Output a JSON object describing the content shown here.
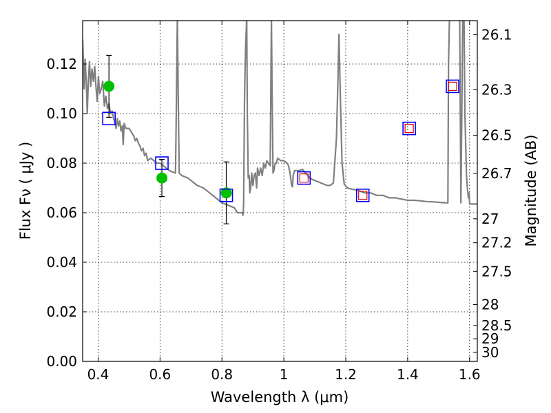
{
  "chart_data": {
    "type": "line",
    "xlabel": "Wavelength  λ (μm)",
    "ylabel": "Flux  Fν  ( μJy )",
    "y2label": "Magnitude (AB)",
    "xlim": [
      0.35,
      1.625
    ],
    "ylim": [
      0.0,
      0.1375
    ],
    "x_ticks": [
      0.4,
      0.6,
      0.8,
      1.0,
      1.2,
      1.4,
      1.6
    ],
    "x_tick_labels": [
      "0.4",
      "0.6",
      "0.8",
      "1",
      "1.2",
      "1.4",
      "1.6"
    ],
    "y_ticks": [
      0.0,
      0.02,
      0.04,
      0.06,
      0.08,
      0.1,
      0.12
    ],
    "y_tick_labels": [
      "0.00",
      "0.02",
      "0.04",
      "0.06",
      "0.08",
      "0.10",
      "0.12"
    ],
    "mag_ticks": [
      {
        "mag": 26.1,
        "label": "26.1"
      },
      {
        "mag": 26.3,
        "label": "26.3"
      },
      {
        "mag": 26.5,
        "label": "26.5"
      },
      {
        "mag": 26.7,
        "label": "26.7"
      },
      {
        "mag": 27.0,
        "label": "27"
      },
      {
        "mag": 27.2,
        "label": "27.2"
      },
      {
        "mag": 27.5,
        "label": "27.5"
      },
      {
        "mag": 28.0,
        "label": "28"
      },
      {
        "mag": 28.5,
        "label": "28.5"
      },
      {
        "mag": 29.0,
        "label": "29"
      },
      {
        "mag": 30.0,
        "label": "30"
      }
    ],
    "grid": true,
    "model_spectrum": {
      "color": "#808080",
      "points": [
        [
          0.35,
          0.13
        ],
        [
          0.355,
          0.11
        ],
        [
          0.358,
          0.122
        ],
        [
          0.362,
          0.112
        ],
        [
          0.365,
          0.1
        ],
        [
          0.368,
          0.112
        ],
        [
          0.372,
          0.121
        ],
        [
          0.376,
          0.111
        ],
        [
          0.38,
          0.118
        ],
        [
          0.385,
          0.113
        ],
        [
          0.389,
          0.119
        ],
        [
          0.393,
          0.111
        ],
        [
          0.397,
          0.105
        ],
        [
          0.401,
          0.115
        ],
        [
          0.405,
          0.108
        ],
        [
          0.41,
          0.11
        ],
        [
          0.415,
          0.113
        ],
        [
          0.42,
          0.103
        ],
        [
          0.425,
          0.107
        ],
        [
          0.43,
          0.102
        ],
        [
          0.435,
          0.104
        ],
        [
          0.44,
          0.1
        ],
        [
          0.445,
          0.101
        ],
        [
          0.45,
          0.098
        ],
        [
          0.455,
          0.096
        ],
        [
          0.458,
          0.094
        ],
        [
          0.462,
          0.098
        ],
        [
          0.466,
          0.095
        ],
        [
          0.47,
          0.097
        ],
        [
          0.474,
          0.093
        ],
        [
          0.478,
          0.095
        ],
        [
          0.481,
          0.0875
        ],
        [
          0.484,
          0.096
        ],
        [
          0.49,
          0.094
        ],
        [
          0.5,
          0.094
        ],
        [
          0.51,
          0.092
        ],
        [
          0.515,
          0.091
        ],
        [
          0.52,
          0.089
        ],
        [
          0.525,
          0.09
        ],
        [
          0.53,
          0.088
        ],
        [
          0.535,
          0.087
        ],
        [
          0.54,
          0.085
        ],
        [
          0.545,
          0.086
        ],
        [
          0.55,
          0.083
        ],
        [
          0.555,
          0.084
        ],
        [
          0.56,
          0.081
        ],
        [
          0.57,
          0.082
        ],
        [
          0.58,
          0.081
        ],
        [
          0.59,
          0.08
        ],
        [
          0.6,
          0.08
        ],
        [
          0.61,
          0.079
        ],
        [
          0.62,
          0.078
        ],
        [
          0.63,
          0.077
        ],
        [
          0.64,
          0.0765
        ],
        [
          0.65,
          0.076
        ],
        [
          0.652,
          0.095
        ],
        [
          0.656,
          0.139
        ],
        [
          0.66,
          0.095
        ],
        [
          0.662,
          0.076
        ],
        [
          0.67,
          0.075
        ],
        [
          0.68,
          0.0745
        ],
        [
          0.69,
          0.074
        ],
        [
          0.7,
          0.073
        ],
        [
          0.72,
          0.071
        ],
        [
          0.74,
          0.07
        ],
        [
          0.76,
          0.068
        ],
        [
          0.78,
          0.066
        ],
        [
          0.8,
          0.064
        ],
        [
          0.82,
          0.063
        ],
        [
          0.84,
          0.062
        ],
        [
          0.85,
          0.06
        ],
        [
          0.86,
          0.06
        ],
        [
          0.865,
          0.06
        ],
        [
          0.868,
          0.059
        ],
        [
          0.87,
          0.063
        ],
        [
          0.873,
          0.105
        ],
        [
          0.876,
          0.125
        ],
        [
          0.88,
          0.139
        ],
        [
          0.882,
          0.1
        ],
        [
          0.885,
          0.074
        ],
        [
          0.888,
          0.075
        ],
        [
          0.89,
          0.068
        ],
        [
          0.893,
          0.07
        ],
        [
          0.896,
          0.076
        ],
        [
          0.9,
          0.071
        ],
        [
          0.904,
          0.075
        ],
        [
          0.908,
          0.076
        ],
        [
          0.912,
          0.07
        ],
        [
          0.915,
          0.078
        ],
        [
          0.92,
          0.075
        ],
        [
          0.925,
          0.078
        ],
        [
          0.93,
          0.075
        ],
        [
          0.935,
          0.08
        ],
        [
          0.94,
          0.078
        ],
        [
          0.945,
          0.081
        ],
        [
          0.95,
          0.08
        ],
        [
          0.956,
          0.079
        ],
        [
          0.958,
          0.11
        ],
        [
          0.96,
          0.139
        ],
        [
          0.962,
          0.11
        ],
        [
          0.965,
          0.076
        ],
        [
          0.968,
          0.077
        ],
        [
          0.972,
          0.08
        ],
        [
          0.976,
          0.08
        ],
        [
          0.98,
          0.082
        ],
        [
          0.99,
          0.081
        ],
        [
          1.0,
          0.081
        ],
        [
          1.01,
          0.08
        ],
        [
          1.015,
          0.079
        ],
        [
          1.02,
          0.076
        ],
        [
          1.025,
          0.071
        ],
        [
          1.028,
          0.0705
        ],
        [
          1.03,
          0.075
        ],
        [
          1.035,
          0.077
        ],
        [
          1.04,
          0.077
        ],
        [
          1.05,
          0.077
        ],
        [
          1.06,
          0.0775
        ],
        [
          1.07,
          0.076
        ],
        [
          1.08,
          0.0745
        ],
        [
          1.09,
          0.0735
        ],
        [
          1.1,
          0.073
        ],
        [
          1.11,
          0.0725
        ],
        [
          1.12,
          0.072
        ],
        [
          1.13,
          0.0715
        ],
        [
          1.14,
          0.071
        ],
        [
          1.15,
          0.071
        ],
        [
          1.16,
          0.072
        ],
        [
          1.17,
          0.09
        ],
        [
          1.175,
          0.115
        ],
        [
          1.178,
          0.132
        ],
        [
          1.182,
          0.11
        ],
        [
          1.188,
          0.08
        ],
        [
          1.195,
          0.0715
        ],
        [
          1.205,
          0.07
        ],
        [
          1.22,
          0.0695
        ],
        [
          1.24,
          0.069
        ],
        [
          1.26,
          0.068
        ],
        [
          1.28,
          0.068
        ],
        [
          1.3,
          0.067
        ],
        [
          1.32,
          0.067
        ],
        [
          1.34,
          0.066
        ],
        [
          1.36,
          0.066
        ],
        [
          1.38,
          0.0655
        ],
        [
          1.4,
          0.065
        ],
        [
          1.42,
          0.065
        ],
        [
          1.44,
          0.0648
        ],
        [
          1.46,
          0.0645
        ],
        [
          1.48,
          0.0644
        ],
        [
          1.5,
          0.0642
        ],
        [
          1.52,
          0.064
        ],
        [
          1.53,
          0.064
        ],
        [
          1.532,
          0.12
        ],
        [
          1.535,
          0.139
        ],
        [
          1.55,
          0.139
        ],
        [
          1.568,
          0.139
        ],
        [
          1.57,
          0.1
        ],
        [
          1.572,
          0.064
        ],
        [
          1.575,
          0.1
        ],
        [
          1.578,
          0.139
        ],
        [
          1.582,
          0.139
        ],
        [
          1.585,
          0.1
        ],
        [
          1.59,
          0.075
        ],
        [
          1.593,
          0.07
        ],
        [
          1.596,
          0.066
        ],
        [
          1.599,
          0.068
        ],
        [
          1.6,
          0.0635
        ],
        [
          1.625,
          0.0635
        ]
      ]
    },
    "series": [
      {
        "color": "#00c000",
        "marker": "circle",
        "points": [
          {
            "x": 0.435,
            "y": 0.111,
            "yerr": 0.0125
          },
          {
            "x": 0.606,
            "y": 0.074,
            "yerr": 0.0075
          },
          {
            "x": 0.814,
            "y": 0.068,
            "yerr": 0.0125
          }
        ]
      },
      {
        "color": "#0000ff",
        "marker": "square-large",
        "points": [
          {
            "x": 0.435,
            "y": 0.098
          },
          {
            "x": 0.606,
            "y": 0.08
          },
          {
            "x": 0.814,
            "y": 0.067
          },
          {
            "x": 1.065,
            "y": 0.074
          },
          {
            "x": 1.255,
            "y": 0.067
          },
          {
            "x": 1.405,
            "y": 0.094
          },
          {
            "x": 1.545,
            "y": 0.111
          }
        ]
      },
      {
        "color": "#e00000",
        "marker": "square-small",
        "points": [
          {
            "x": 1.065,
            "y": 0.074
          },
          {
            "x": 1.255,
            "y": 0.067
          },
          {
            "x": 1.405,
            "y": 0.094
          },
          {
            "x": 1.545,
            "y": 0.111
          }
        ]
      }
    ]
  }
}
